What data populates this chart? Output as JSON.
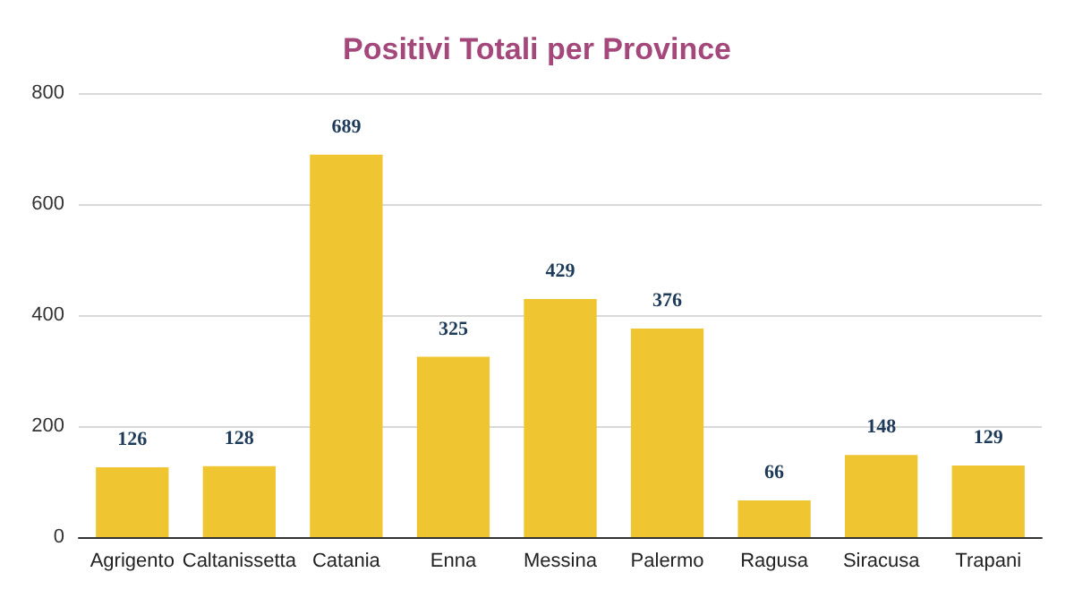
{
  "chart_data": {
    "type": "bar",
    "title": "Positivi Totali per Province",
    "categories": [
      "Agrigento",
      "Caltanissetta",
      "Catania",
      "Enna",
      "Messina",
      "Palermo",
      "Ragusa",
      "Siracusa",
      "Trapani"
    ],
    "values": [
      126,
      128,
      689,
      325,
      429,
      376,
      66,
      148,
      129
    ],
    "color": "#efc532",
    "ylim": [
      0,
      800
    ],
    "yticks": [
      0,
      200,
      400,
      600,
      800
    ],
    "grid": "y",
    "data_labels": true
  }
}
